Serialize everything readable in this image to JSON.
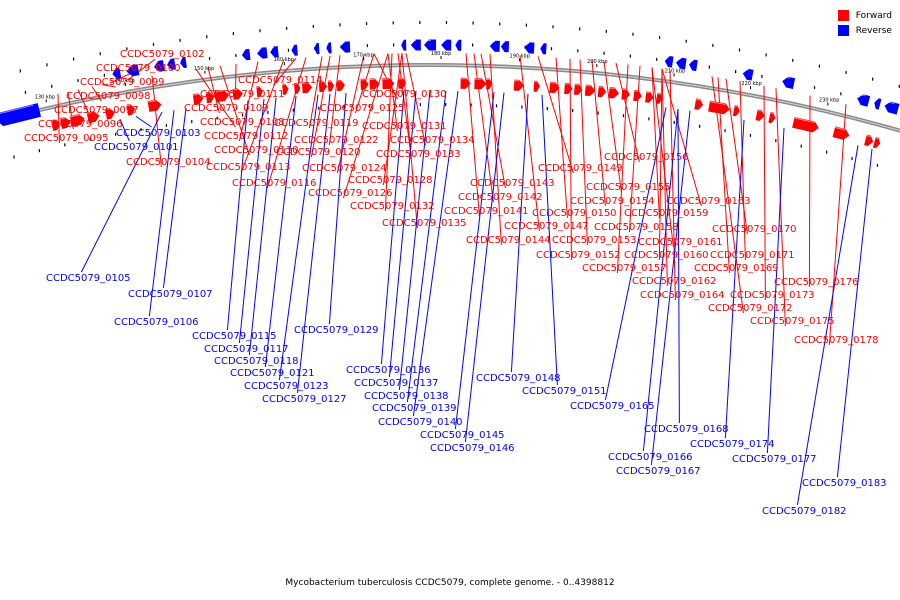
{
  "legend": {
    "forward": {
      "label": "Forward",
      "color": "#ff0000"
    },
    "reverse": {
      "label": "Reverse",
      "color": "#0000ff"
    }
  },
  "caption": "Mycobacterium tuberculosis CCDC5079, complete genome. - 0..4398812",
  "scale_ticks": [
    "130 kbp",
    "140 kbp",
    "150 kbp",
    "160 kbp",
    "170 kbp",
    "180 kbp",
    "190 kbp",
    "200 kbp",
    "210 kbp",
    "220 kbp",
    "230 kbp"
  ],
  "forward_genes": [
    "CCDC5079_0095",
    "CCDC5079_0096",
    "CCDC5079_0097",
    "CCDC5079_0098",
    "CCDC5079_0099",
    "CCDC5079_0100",
    "CCDC5079_0102",
    "CCDC5079_0104",
    "CCDC5079_0108",
    "CCDC5079_0109",
    "CCDC5079_0110",
    "CCDC5079_0111",
    "CCDC5079_0112",
    "CCDC5079_0113",
    "CCDC5079_0114",
    "CCDC5079_0116",
    "CCDC5079_0119",
    "CCDC5079_0120",
    "CCDC5079_0122",
    "CCDC5079_0124",
    "CCDC5079_0125",
    "CCDC5079_0126",
    "CCDC5079_0128",
    "CCDC5079_0130",
    "CCDC5079_0131",
    "CCDC5079_0132",
    "CCDC5079_0133",
    "CCDC5079_0134",
    "CCDC5079_0135",
    "CCDC5079_0141",
    "CCDC5079_0142",
    "CCDC5079_0143",
    "CCDC5079_0144",
    "CCDC5079_0147",
    "CCDC5079_0149",
    "CCDC5079_0150",
    "CCDC5079_0152",
    "CCDC5079_0153",
    "CCDC5079_0154",
    "CCDC5079_0155",
    "CCDC5079_0156",
    "CCDC5079_0157",
    "CCDC5079_0158",
    "CCDC5079_0159",
    "CCDC5079_0160",
    "CCDC5079_0161",
    "CCDC5079_0162",
    "CCDC5079_0163",
    "CCDC5079_0164",
    "CCDC5079_0169",
    "CCDC5079_0170",
    "CCDC5079_0171",
    "CCDC5079_0172",
    "CCDC5079_0173",
    "CCDC5079_0175",
    "CCDC5079_0176",
    "CCDC5079_0178"
  ],
  "reverse_genes": [
    "CCDC5079_0101",
    "CCDC5079_0103",
    "CCDC5079_0105",
    "CCDC5079_0106",
    "CCDC5079_0107",
    "CCDC5079_0115",
    "CCDC5079_0117",
    "CCDC5079_0118",
    "CCDC5079_0121",
    "CCDC5079_0123",
    "CCDC5079_0127",
    "CCDC5079_0129",
    "CCDC5079_0136",
    "CCDC5079_0137",
    "CCDC5079_0138",
    "CCDC5079_0139",
    "CCDC5079_0140",
    "CCDC5079_0145",
    "CCDC5079_0146",
    "CCDC5079_0148",
    "CCDC5079_0151",
    "CCDC5079_0165",
    "CCDC5079_0166",
    "CCDC5079_0167",
    "CCDC5079_0168",
    "CCDC5079_0174",
    "CCDC5079_0177",
    "CCDC5079_0182",
    "CCDC5079_0183"
  ]
}
